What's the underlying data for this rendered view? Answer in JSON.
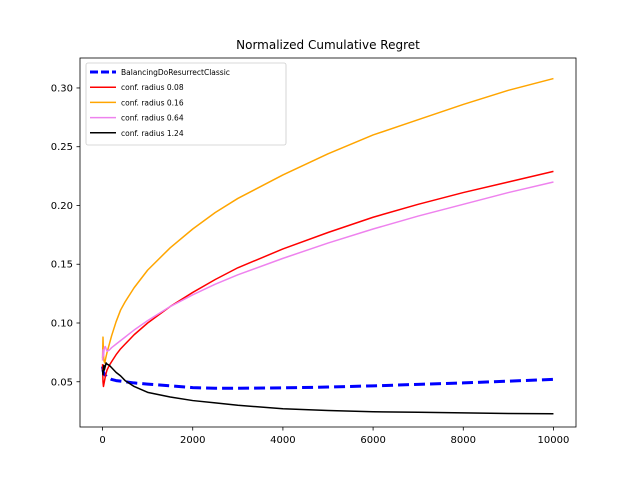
{
  "chart_data": {
    "type": "line",
    "title": "Normalized Cumulative Regret",
    "xlabel": "",
    "ylabel": "",
    "xlim": [
      -500,
      10500
    ],
    "ylim": [
      0.0115,
      0.3255
    ],
    "xticks": [
      0,
      2000,
      4000,
      6000,
      8000,
      10000
    ],
    "yticks": [
      0.05,
      0.1,
      0.15,
      0.2,
      0.25,
      0.3
    ],
    "ytick_labels": [
      "0.05",
      "0.10",
      "0.15",
      "0.20",
      "0.25",
      "0.30"
    ],
    "xtick_labels": [
      "0",
      "2000",
      "4000",
      "6000",
      "8000",
      "10000"
    ],
    "grid": false,
    "legend_position": "top-left",
    "series": [
      {
        "name": "BalancingDoResurrectClassic",
        "color": "#0000ff",
        "style": "dashed",
        "x": [
          0,
          20,
          50,
          100,
          150,
          200,
          300,
          400,
          500,
          700,
          1000,
          1500,
          2000,
          2500,
          3000,
          4000,
          5000,
          6000,
          7000,
          8000,
          9000,
          10000
        ],
        "y": [
          0.063,
          0.058,
          0.056,
          0.054,
          0.053,
          0.052,
          0.051,
          0.0505,
          0.05,
          0.049,
          0.048,
          0.0465,
          0.045,
          0.0445,
          0.0445,
          0.0448,
          0.0455,
          0.0465,
          0.0478,
          0.049,
          0.0505,
          0.052
        ]
      },
      {
        "name": " conf. radius 0.08",
        "color": "#ff0000",
        "style": "solid",
        "x": [
          0,
          10,
          20,
          30,
          50,
          70,
          100,
          150,
          200,
          300,
          400,
          500,
          700,
          1000,
          1500,
          2000,
          2500,
          3000,
          4000,
          5000,
          6000,
          7000,
          8000,
          9000,
          10000
        ],
        "y": [
          0.065,
          0.05,
          0.046,
          0.048,
          0.052,
          0.056,
          0.06,
          0.064,
          0.067,
          0.073,
          0.078,
          0.082,
          0.09,
          0.1,
          0.114,
          0.126,
          0.137,
          0.147,
          0.163,
          0.177,
          0.19,
          0.201,
          0.211,
          0.22,
          0.229
        ]
      },
      {
        "name": " conf. radius 0.16",
        "color": "#ffa500",
        "style": "solid",
        "x": [
          0,
          10,
          20,
          30,
          50,
          70,
          100,
          150,
          200,
          300,
          400,
          500,
          700,
          1000,
          1500,
          2000,
          2500,
          3000,
          4000,
          5000,
          6000,
          7000,
          8000,
          9000,
          10000
        ],
        "y": [
          0.07,
          0.088,
          0.075,
          0.068,
          0.066,
          0.07,
          0.075,
          0.082,
          0.089,
          0.101,
          0.111,
          0.118,
          0.13,
          0.145,
          0.164,
          0.18,
          0.194,
          0.206,
          0.226,
          0.244,
          0.26,
          0.273,
          0.286,
          0.298,
          0.308
        ]
      },
      {
        "name": " conf. radius 0.64",
        "color": "#ee82ee",
        "style": "solid",
        "x": [
          0,
          10,
          20,
          40,
          60,
          80,
          100,
          150,
          200,
          300,
          400,
          500,
          700,
          1000,
          1500,
          2000,
          2500,
          3000,
          4000,
          5000,
          6000,
          7000,
          8000,
          9000,
          10000
        ],
        "y": [
          0.068,
          0.077,
          0.072,
          0.079,
          0.08,
          0.078,
          0.076,
          0.077,
          0.079,
          0.082,
          0.085,
          0.088,
          0.094,
          0.102,
          0.114,
          0.124,
          0.133,
          0.141,
          0.155,
          0.168,
          0.18,
          0.191,
          0.201,
          0.211,
          0.22
        ]
      },
      {
        "name": " conf. radius 1.24",
        "color": "#000000",
        "style": "solid",
        "x": [
          0,
          10,
          20,
          30,
          40,
          60,
          80,
          100,
          150,
          200,
          300,
          400,
          500,
          700,
          1000,
          1500,
          2000,
          2500,
          3000,
          4000,
          5000,
          6000,
          7000,
          8000,
          9000,
          10000
        ],
        "y": [
          0.06,
          0.056,
          0.062,
          0.064,
          0.06,
          0.063,
          0.066,
          0.065,
          0.064,
          0.062,
          0.058,
          0.055,
          0.051,
          0.046,
          0.041,
          0.037,
          0.034,
          0.032,
          0.03,
          0.027,
          0.0255,
          0.0245,
          0.024,
          0.0235,
          0.023,
          0.0228
        ]
      }
    ]
  }
}
